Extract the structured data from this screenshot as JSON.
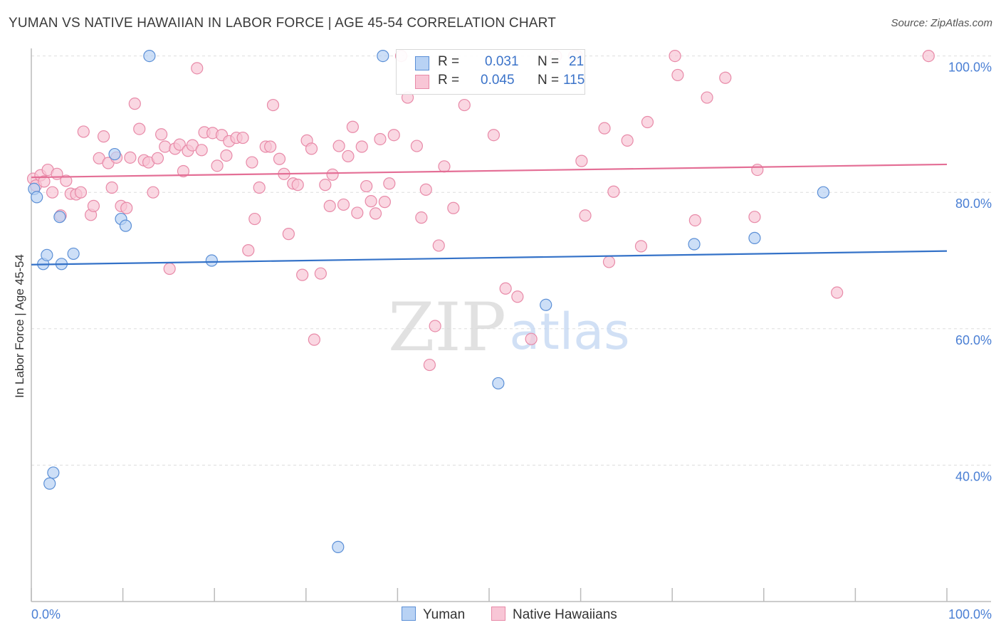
{
  "title": "YUMAN VS NATIVE HAWAIIAN IN LABOR FORCE | AGE 45-54 CORRELATION CHART",
  "source": "Source: ZipAtlas.com",
  "watermark": {
    "zip": "ZIP",
    "atlas": "atlas"
  },
  "legend": {
    "r_label": "R =",
    "n_label": "N =",
    "items": [
      {
        "name": "Yuman",
        "r": "0.031",
        "n": "21"
      },
      {
        "name": "Native Hawaiians",
        "r": "0.045",
        "n": "115"
      }
    ]
  },
  "colors": {
    "yuman_fill": "#b8d2f4",
    "yuman_stroke": "#5b8fd6",
    "yuman_line": "#3472c8",
    "hawaiian_fill": "#f8c6d6",
    "hawaiian_stroke": "#e88aa8",
    "hawaiian_line": "#e46f96",
    "tick_text": "#4a7fd4",
    "grid": "#dddddd"
  },
  "chart_data": {
    "type": "scatter",
    "title": "YUMAN VS NATIVE HAWAIIAN IN LABOR FORCE | AGE 45-54 CORRELATION CHART",
    "xlabel": "",
    "ylabel": "In Labor Force | Age 45-54",
    "xlim": [
      0,
      100
    ],
    "ylim": [
      20,
      102
    ],
    "x_tick_labels": [
      {
        "value": 0,
        "label": "0.0%"
      },
      {
        "value": 100,
        "label": "100.0%"
      }
    ],
    "y_tick_labels": [
      {
        "value": 40,
        "label": "40.0%"
      },
      {
        "value": 60,
        "label": "60.0%"
      },
      {
        "value": 80,
        "label": "80.0%"
      },
      {
        "value": 100,
        "label": "100.0%"
      }
    ],
    "grid": true,
    "series": [
      {
        "name": "Yuman",
        "trend": [
          [
            0,
            69.4
          ],
          [
            100,
            71.4
          ]
        ],
        "points": [
          [
            0.3,
            80.5
          ],
          [
            0.6,
            79.3
          ],
          [
            1.3,
            69.5
          ],
          [
            1.7,
            70.8
          ],
          [
            2.0,
            37.3
          ],
          [
            2.4,
            38.9
          ],
          [
            3.1,
            76.4
          ],
          [
            3.3,
            69.5
          ],
          [
            4.6,
            71.0
          ],
          [
            9.1,
            85.6
          ],
          [
            9.8,
            76.1
          ],
          [
            10.3,
            75.1
          ],
          [
            12.9,
            100.0
          ],
          [
            19.7,
            70.0
          ],
          [
            33.5,
            28.0
          ],
          [
            38.4,
            100.0
          ],
          [
            51.0,
            52.0
          ],
          [
            56.2,
            63.5
          ],
          [
            72.4,
            72.4
          ],
          [
            86.5,
            80.0
          ],
          [
            79.0,
            73.3
          ]
        ]
      },
      {
        "name": "Native Hawaiians",
        "trend": [
          [
            0,
            82.2
          ],
          [
            100,
            84.1
          ]
        ],
        "points": [
          [
            0.2,
            82.0
          ],
          [
            0.5,
            81.0
          ],
          [
            1.0,
            82.5
          ],
          [
            1.4,
            81.6
          ],
          [
            1.8,
            83.3
          ],
          [
            2.3,
            80.0
          ],
          [
            2.8,
            82.7
          ],
          [
            3.2,
            76.6
          ],
          [
            3.8,
            81.7
          ],
          [
            4.3,
            79.8
          ],
          [
            4.9,
            79.7
          ],
          [
            5.4,
            80.0
          ],
          [
            5.7,
            88.9
          ],
          [
            6.5,
            76.7
          ],
          [
            6.8,
            78.0
          ],
          [
            7.4,
            85.0
          ],
          [
            7.9,
            88.2
          ],
          [
            8.4,
            84.3
          ],
          [
            8.8,
            80.7
          ],
          [
            9.3,
            85.1
          ],
          [
            9.8,
            78.0
          ],
          [
            10.4,
            77.7
          ],
          [
            10.8,
            85.1
          ],
          [
            11.3,
            93.0
          ],
          [
            11.8,
            89.3
          ],
          [
            12.3,
            84.7
          ],
          [
            12.8,
            84.4
          ],
          [
            13.3,
            80.0
          ],
          [
            13.8,
            85.0
          ],
          [
            14.2,
            88.5
          ],
          [
            14.6,
            86.7
          ],
          [
            15.1,
            68.8
          ],
          [
            15.7,
            86.4
          ],
          [
            16.2,
            87.0
          ],
          [
            16.6,
            83.1
          ],
          [
            17.1,
            86.1
          ],
          [
            17.6,
            86.9
          ],
          [
            18.1,
            98.2
          ],
          [
            18.6,
            86.2
          ],
          [
            18.9,
            88.8
          ],
          [
            19.8,
            88.7
          ],
          [
            20.3,
            83.9
          ],
          [
            20.8,
            88.4
          ],
          [
            21.3,
            85.4
          ],
          [
            21.6,
            87.5
          ],
          [
            22.4,
            88.0
          ],
          [
            23.1,
            88.0
          ],
          [
            23.7,
            71.5
          ],
          [
            24.1,
            84.4
          ],
          [
            24.4,
            76.1
          ],
          [
            24.9,
            80.7
          ],
          [
            25.6,
            86.7
          ],
          [
            26.1,
            86.7
          ],
          [
            26.4,
            92.8
          ],
          [
            27.1,
            84.9
          ],
          [
            27.6,
            82.7
          ],
          [
            28.1,
            73.9
          ],
          [
            28.6,
            81.3
          ],
          [
            29.1,
            81.1
          ],
          [
            29.6,
            67.9
          ],
          [
            30.1,
            87.6
          ],
          [
            30.6,
            86.4
          ],
          [
            30.9,
            58.4
          ],
          [
            31.6,
            68.1
          ],
          [
            32.1,
            81.1
          ],
          [
            32.6,
            78.0
          ],
          [
            32.9,
            82.6
          ],
          [
            33.6,
            86.8
          ],
          [
            34.1,
            78.2
          ],
          [
            34.6,
            85.3
          ],
          [
            35.1,
            89.6
          ],
          [
            35.6,
            77.0
          ],
          [
            36.1,
            86.7
          ],
          [
            36.6,
            80.9
          ],
          [
            37.1,
            78.7
          ],
          [
            37.6,
            76.9
          ],
          [
            38.1,
            87.8
          ],
          [
            38.6,
            78.6
          ],
          [
            39.1,
            81.3
          ],
          [
            39.6,
            88.4
          ],
          [
            40.4,
            100.0
          ],
          [
            41.1,
            93.9
          ],
          [
            42.1,
            86.8
          ],
          [
            42.6,
            76.3
          ],
          [
            43.1,
            80.4
          ],
          [
            43.5,
            54.7
          ],
          [
            44.1,
            60.4
          ],
          [
            44.5,
            72.2
          ],
          [
            45.1,
            83.8
          ],
          [
            46.1,
            77.7
          ],
          [
            47.3,
            92.8
          ],
          [
            50.5,
            88.4
          ],
          [
            51.8,
            65.9
          ],
          [
            53.1,
            64.7
          ],
          [
            54.6,
            58.5
          ],
          [
            59.6,
            100.0
          ],
          [
            60.1,
            84.6
          ],
          [
            60.5,
            76.6
          ],
          [
            62.6,
            89.4
          ],
          [
            63.1,
            69.8
          ],
          [
            63.6,
            80.1
          ],
          [
            65.1,
            87.6
          ],
          [
            66.6,
            72.1
          ],
          [
            67.3,
            90.3
          ],
          [
            70.3,
            100.0
          ],
          [
            70.6,
            97.2
          ],
          [
            72.5,
            75.9
          ],
          [
            73.8,
            93.9
          ],
          [
            75.8,
            96.8
          ],
          [
            79.0,
            76.4
          ],
          [
            79.3,
            83.3
          ],
          [
            88.0,
            65.3
          ],
          [
            98.0,
            100.0
          ],
          [
            57.3,
            100.0
          ],
          [
            59.3,
            100.0
          ]
        ]
      }
    ]
  }
}
